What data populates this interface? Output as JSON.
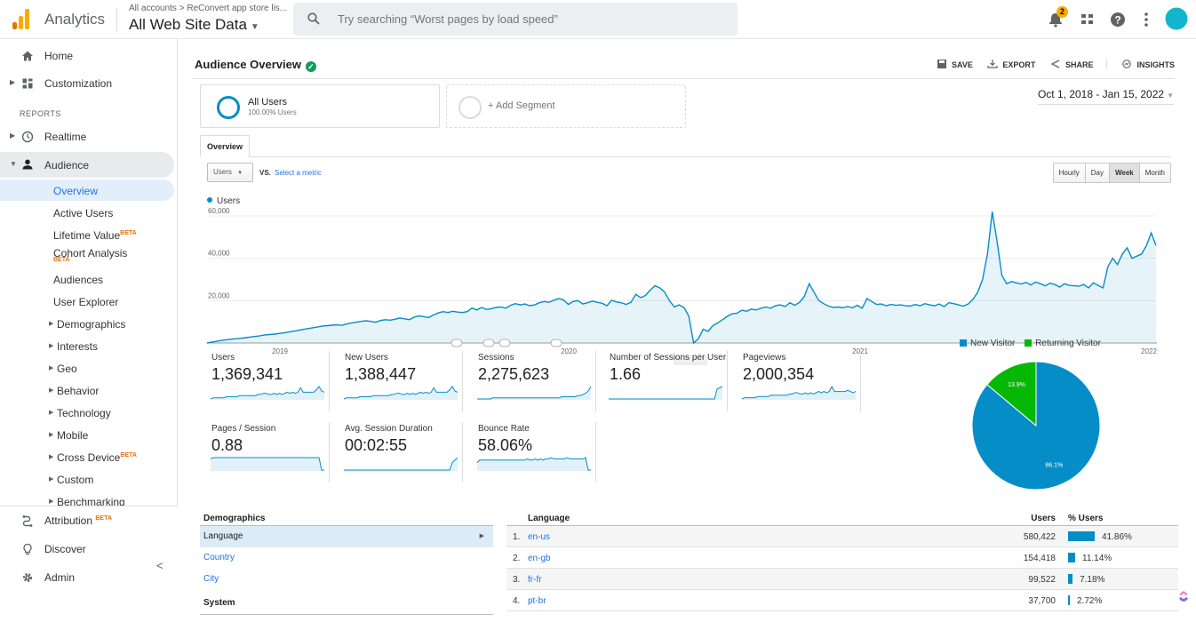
{
  "header": {
    "app_name": "Analytics",
    "breadcrumb": "All accounts > ReConvert app store lis...",
    "property": "All Web Site Data",
    "search_placeholder": "Try searching “Worst pages by load speed”",
    "notification_count": "2",
    "logo_colors": [
      "#f9ab00",
      "#e37400"
    ]
  },
  "sidebar": {
    "home": "Home",
    "customization": "Customization",
    "reports_label": "REPORTS",
    "realtime": "Realtime",
    "audience": "Audience",
    "audience_items": {
      "overview": "Overview",
      "active_users": "Active Users",
      "lifetime_value": "Lifetime Value",
      "cohort_analysis": "Cohort Analysis",
      "audiences": "Audiences",
      "user_explorer": "User Explorer",
      "demographics": "Demographics",
      "interests": "Interests",
      "geo": "Geo",
      "behavior": "Behavior",
      "technology": "Technology",
      "mobile": "Mobile",
      "cross_device": "Cross Device",
      "custom": "Custom",
      "benchmarking": "Benchmarking"
    },
    "beta": "BETA",
    "attribution": "Attribution",
    "discover": "Discover",
    "admin": "Admin"
  },
  "main": {
    "title": "Audience Overview",
    "actions": {
      "save": "SAVE",
      "export": "EXPORT",
      "share": "SHARE",
      "insights": "INSIGHTS"
    },
    "segment": {
      "name": "All Users",
      "percent": "100.00% Users",
      "add": "+ Add Segment"
    },
    "date_range": "Oct 1, 2018 - Jan 15, 2022",
    "tab": "Overview",
    "metric_select": "Users",
    "vs": "VS.",
    "select_metric": "Select a metric",
    "granularity": [
      "Hourly",
      "Day",
      "Week",
      "Month"
    ],
    "granularity_selected": "Week",
    "accent_color": "#058dc7"
  },
  "chart_data": [
    {
      "type": "line",
      "series": [
        {
          "name": "Users",
          "values": [
            0,
            400,
            800,
            1200,
            1500,
            1800,
            2000,
            2200,
            2500,
            2800,
            3100,
            3400,
            3800,
            4000,
            4200,
            4500,
            4800,
            5200,
            5600,
            6000,
            6400,
            6800,
            7200,
            7600,
            8000,
            8200,
            8400,
            8600,
            8300,
            9000,
            9500,
            9800,
            10200,
            10500,
            10200,
            9800,
            10600,
            11000,
            10800,
            11200,
            11800,
            11400,
            11000,
            12200,
            12800,
            12400,
            12000,
            13200,
            14200,
            14800,
            14400,
            15000,
            14600,
            14400,
            14800,
            16500,
            15600,
            16800,
            15800,
            16200,
            16800,
            17000,
            16400,
            17800,
            18600,
            18000,
            18400,
            17600,
            18000,
            19000,
            19600,
            19200,
            20200,
            21000,
            20400,
            18200,
            19600,
            20000,
            18400,
            19000,
            19800,
            19200,
            18800,
            17600,
            20200,
            19400,
            19000,
            18200,
            19200,
            23000,
            21400,
            22400,
            25000,
            27000,
            26000,
            24000,
            20000,
            17000,
            18000,
            16800,
            12800,
            0,
            2000,
            6500,
            5500,
            8200,
            9500,
            11000,
            12600,
            13800,
            14000,
            15500,
            15000,
            16000,
            15600,
            16400,
            17000,
            16400,
            17600,
            18000,
            17200,
            19000,
            17800,
            19200,
            22000,
            28000,
            24000,
            20000,
            18600,
            17400,
            16800,
            17000,
            16600,
            17200,
            16600,
            17800,
            16400,
            21000,
            19600,
            18200,
            18400,
            17600,
            18200,
            17800,
            18000,
            17600,
            17400,
            18200,
            17600,
            18600,
            18000,
            17600,
            18400,
            17200,
            19000,
            18600,
            18000,
            17400,
            18400,
            20600,
            24000,
            30000,
            42000,
            62000,
            48000,
            32000,
            28000,
            29000,
            28400,
            27800,
            28600,
            27400,
            28800,
            28000,
            27000,
            28200,
            27600,
            26400,
            28000,
            27200,
            27000,
            26800,
            27600,
            26000,
            28400,
            27200,
            26000,
            36000,
            40000,
            37000,
            42000,
            45000,
            40000,
            41000,
            42000,
            46000,
            52000,
            46000
          ]
        }
      ],
      "x_tick_labels": [
        "2019",
        "2020",
        "2021",
        "2022"
      ],
      "ylim": [
        0,
        60000
      ],
      "y_tick_labels": [
        "60,000",
        "40,000",
        "20,000"
      ],
      "grid": true
    },
    {
      "type": "pie",
      "categories": [
        "New Visitor",
        "Returning Visitor"
      ],
      "values": [
        86.1,
        13.9
      ],
      "labels": [
        "86.1%",
        "13.9%"
      ],
      "colors": [
        "#058dc7",
        "#06b806"
      ],
      "legend": "top"
    }
  ],
  "scorecards": [
    {
      "name": "Users",
      "value": "1,369,341",
      "spark": [
        0,
        1,
        1,
        1,
        1,
        1,
        2,
        2,
        2,
        2,
        2,
        3,
        3,
        3,
        3,
        3,
        3,
        3,
        4,
        4,
        5,
        5,
        4,
        4,
        5,
        4,
        5,
        4,
        5,
        6,
        5,
        6,
        5,
        6,
        10,
        6,
        6,
        6,
        6,
        6,
        8,
        11,
        7,
        6
      ]
    },
    {
      "name": "New Users",
      "value": "1,388,447",
      "spark": [
        0,
        1,
        1,
        1,
        1,
        1,
        2,
        2,
        2,
        2,
        2,
        3,
        3,
        3,
        3,
        3,
        3,
        3,
        4,
        4,
        5,
        5,
        4,
        4,
        5,
        4,
        5,
        4,
        5,
        6,
        5,
        6,
        5,
        6,
        10,
        6,
        6,
        6,
        6,
        6,
        8,
        11,
        7,
        6
      ]
    },
    {
      "name": "Sessions",
      "value": "2,275,623",
      "spark": [
        0,
        0,
        0,
        0,
        0,
        0,
        1,
        1,
        1,
        1,
        1,
        1,
        1,
        1,
        1,
        1,
        1,
        1,
        1,
        1,
        1,
        1,
        1,
        1,
        1,
        1,
        1,
        1,
        1,
        1,
        1,
        1,
        2,
        2,
        2,
        2,
        2,
        2,
        3,
        3,
        4,
        5,
        7,
        11
      ]
    },
    {
      "name": "Number of Sessions per User",
      "value": "1.66",
      "spark": [
        0,
        0,
        0,
        0,
        0,
        0,
        0,
        0,
        0,
        0,
        0,
        0,
        0,
        0,
        0,
        0,
        0,
        0,
        0,
        0,
        0,
        0,
        0,
        0,
        0,
        0,
        0,
        0,
        0,
        0,
        0,
        0,
        0,
        0,
        0,
        0,
        0,
        0,
        0,
        0,
        0,
        8,
        9,
        10
      ]
    },
    {
      "name": "Pageviews",
      "value": "2,000,354",
      "spark": [
        0,
        1,
        1,
        1,
        1,
        1,
        2,
        2,
        2,
        2,
        2,
        3,
        3,
        3,
        3,
        3,
        3,
        3,
        4,
        4,
        5,
        5,
        4,
        4,
        5,
        4,
        5,
        4,
        5,
        6,
        5,
        6,
        5,
        6,
        10,
        6,
        6,
        6,
        6,
        6,
        7,
        6,
        5,
        6
      ]
    },
    {
      "name": "Pages / Session",
      "value": "0.88",
      "spark": [
        9,
        10,
        10,
        10,
        10,
        10,
        10,
        10,
        10,
        10,
        10,
        10,
        10,
        10,
        10,
        10,
        10,
        10,
        10,
        10,
        10,
        10,
        10,
        10,
        10,
        10,
        10,
        10,
        10,
        10,
        10,
        10,
        10,
        10,
        10,
        10,
        10,
        10,
        10,
        10,
        10,
        10,
        0,
        0
      ]
    },
    {
      "name": "Avg. Session Duration",
      "value": "00:02:55",
      "spark": [
        0,
        0,
        0,
        0,
        0,
        0,
        0,
        0,
        0,
        0,
        0,
        0,
        0,
        0,
        0,
        0,
        0,
        0,
        0,
        0,
        0,
        0,
        0,
        0,
        0,
        0,
        0,
        0,
        0,
        0,
        0,
        0,
        0,
        0,
        0,
        0,
        0,
        0,
        0,
        0,
        0,
        6,
        8,
        10
      ]
    },
    {
      "name": "Bounce Rate",
      "value": "58.06%",
      "spark": [
        6,
        8,
        8,
        8,
        8,
        8,
        8,
        8,
        8,
        8,
        8,
        8,
        8,
        8,
        8,
        8,
        8,
        8,
        8,
        9,
        8,
        8,
        9,
        8,
        9,
        8,
        9,
        9,
        10,
        9,
        9,
        9,
        9,
        9,
        10,
        9,
        9,
        9,
        9,
        9,
        9,
        10,
        0,
        0
      ]
    }
  ],
  "demographics": {
    "title": "Demographics",
    "items": [
      "Language",
      "Country",
      "City"
    ],
    "system": "System"
  },
  "language_table": {
    "col_language": "Language",
    "col_users": "Users",
    "col_pct": "% Users",
    "rows": [
      {
        "idx": "1.",
        "code": "en-us",
        "users": "580,422",
        "pct": "41.86%",
        "share": 41.86
      },
      {
        "idx": "2.",
        "code": "en-gb",
        "users": "154,418",
        "pct": "11.14%",
        "share": 11.14
      },
      {
        "idx": "3.",
        "code": "fr-fr",
        "users": "99,522",
        "pct": "7.18%",
        "share": 7.18
      },
      {
        "idx": "4.",
        "code": "pt-br",
        "users": "37,700",
        "pct": "2.72%",
        "share": 2.72
      }
    ]
  }
}
